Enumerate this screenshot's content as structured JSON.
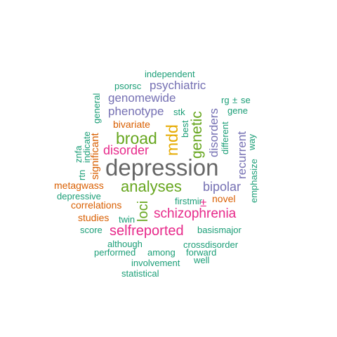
{
  "palette": {
    "teal": "#1b9e77",
    "orange": "#d95f02",
    "purple": "#7570b3",
    "magenta": "#e7298a",
    "green": "#66a61e",
    "gold": "#e6ab02",
    "gray": "#666666"
  },
  "words": {
    "depression": "depression",
    "analyses": "analyses",
    "schizophrenia": "schizophrenia",
    "broad": "broad",
    "mdd": "mdd",
    "genetic": "genetic",
    "selfreported": "selfreported",
    "loci": "loci",
    "disorder": "disorder",
    "bipolar": "bipolar",
    "disorders": "disorders",
    "recurrent": "recurrent",
    "psychiatric": "psychiatric",
    "genomewide": "genomewide",
    "phenotype": "phenotype",
    "metagwass": "metagwass",
    "novel": "novel",
    "correlations": "correlations",
    "significant": "significant",
    "studies": "studies",
    "bivariate": "bivariate",
    "plusminus": "±",
    "independent": "independent",
    "psorsc": "psorsc",
    "rg": "rg",
    "rg_pm": "±",
    "se": "se",
    "gene": "gene",
    "stk": "stk",
    "best": "best",
    "different": "different",
    "emphasize": "emphasize",
    "way": "way",
    "general": "general",
    "indicate": "indicate",
    "znfa": "znfa",
    "rtn": "rtn",
    "depressive": "depressive",
    "firstmir": "firstmir",
    "twin": "twin",
    "score": "score",
    "basismajor": "basismajor",
    "although": "although",
    "crossdisorder": "crossdisorder",
    "performed": "performed",
    "among": "among",
    "forward": "forward",
    "involvement": "involvement",
    "well": "well",
    "statistical": "statistical"
  }
}
